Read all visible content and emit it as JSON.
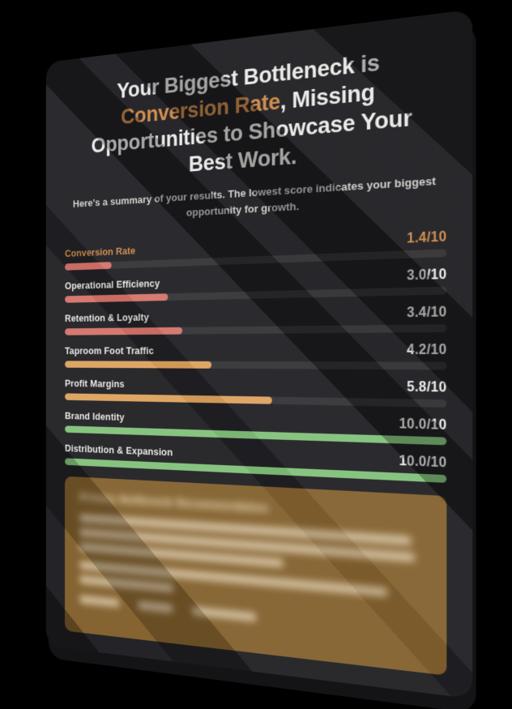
{
  "header": {
    "title_pre": "Your Biggest Bottleneck is ",
    "title_accent": "Conversion Rate",
    "title_post": ", Missing Opportunities to Showcase Your Best Work.",
    "subtitle": "Here's a summary of your results. The lowest score indicates your biggest opportunity for growth."
  },
  "chart_data": {
    "type": "bar",
    "orientation": "horizontal",
    "max": 10,
    "categories": [
      "Conversion Rate",
      "Operational Efficiency",
      "Retention & Loyalty",
      "Taproom Foot Traffic",
      "Profit Margins",
      "Brand Identity",
      "Distribution & Expansion"
    ],
    "values": [
      1.4,
      3.0,
      3.4,
      4.2,
      5.8,
      10.0,
      10.0
    ],
    "value_labels": [
      "1.4/10",
      "3.0/10",
      "3.4/10",
      "4.2/10",
      "5.8/10",
      "10.0/10",
      "10.0/10"
    ],
    "bar_colors": [
      "#d4736a",
      "#d4736a",
      "#d4736a",
      "#dda25e",
      "#dda25e",
      "#82c17a",
      "#82c17a"
    ],
    "highlight_index": 0,
    "legend": "none",
    "grid": false,
    "track_color": "rgba(255,255,255,0.085)"
  },
  "recommendation": {
    "heading": "Primary Bottleneck Recommendation",
    "content_blurred": true,
    "blurred_paragraph_line_widths": [
      [
        96,
        97,
        62
      ],
      [
        90,
        30
      ]
    ],
    "blurred_footer_item_widths": [
      13,
      11,
      19
    ]
  },
  "colors": {
    "accent": "#cd8a4a",
    "low_score": "#d4736a",
    "mid_score": "#dda25e",
    "high_score": "#82c17a",
    "recommendation_panel": "#83612e",
    "card_background": "#202024",
    "page_background": "#000000",
    "title_text": "#e9e9e7"
  }
}
